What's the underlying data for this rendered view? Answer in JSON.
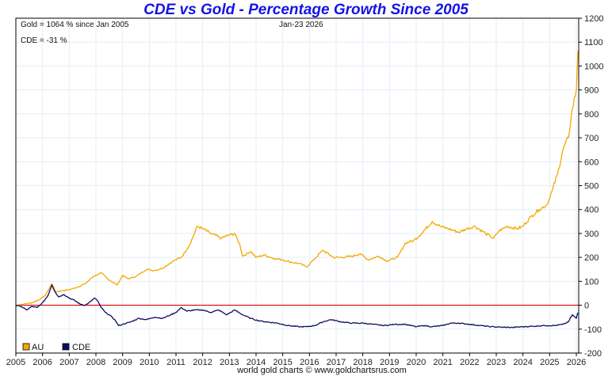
{
  "chart_data": {
    "type": "line",
    "title": "CDE vs Gold - Percentage Growth Since 2005",
    "xlabel": "",
    "ylabel": "",
    "xlim": [
      2005,
      2026.1
    ],
    "ylim": [
      -200,
      1200
    ],
    "yticks": [
      -200,
      -100,
      0,
      100,
      200,
      300,
      400,
      500,
      600,
      700,
      800,
      900,
      1000,
      1100,
      1200
    ],
    "xticks": [
      "2005",
      "2006",
      "2007",
      "2008",
      "2009",
      "2010",
      "2011",
      "2012",
      "2013",
      "2014",
      "2015",
      "2016",
      "2017",
      "2018",
      "2019",
      "2020",
      "2021",
      "2022",
      "2023",
      "2024",
      "2025",
      "2026"
    ],
    "grid": true,
    "zero_line_color": "#dd0000",
    "annotations": {
      "gold_summary": "Gold = 1064 % since Jan 2005",
      "date": "Jan-23  2026",
      "cde_summary": "CDE = -31 %"
    },
    "legend": {
      "placement": "bottom-left",
      "entries": [
        "AU",
        "CDE"
      ]
    },
    "series": [
      {
        "name": "AU",
        "color": "#f5a800",
        "x": [
          2005.0,
          2005.3,
          2005.6,
          2005.9,
          2006.1,
          2006.35,
          2006.5,
          2006.7,
          2007.0,
          2007.3,
          2007.6,
          2007.9,
          2008.1,
          2008.2,
          2008.5,
          2008.8,
          2009.0,
          2009.2,
          2009.5,
          2009.9,
          2010.2,
          2010.5,
          2010.9,
          2011.2,
          2011.5,
          2011.65,
          2011.8,
          2012.0,
          2012.3,
          2012.7,
          2012.9,
          2013.2,
          2013.4,
          2013.5,
          2013.8,
          2014.0,
          2014.3,
          2014.7,
          2015.0,
          2015.3,
          2015.6,
          2015.9,
          2016.2,
          2016.5,
          2016.9,
          2017.2,
          2017.6,
          2017.9,
          2018.2,
          2018.6,
          2018.9,
          2019.3,
          2019.6,
          2019.9,
          2020.2,
          2020.6,
          2020.9,
          2021.2,
          2021.6,
          2021.9,
          2022.2,
          2022.6,
          2022.9,
          2023.1,
          2023.4,
          2023.8,
          2024.0,
          2024.3,
          2024.6,
          2024.9,
          2025.1,
          2025.3,
          2025.5,
          2025.7,
          2025.85,
          2026.0,
          2026.06
        ],
        "values": [
          0,
          5,
          10,
          25,
          40,
          90,
          55,
          60,
          65,
          75,
          90,
          120,
          130,
          135,
          105,
          85,
          125,
          110,
          120,
          150,
          145,
          155,
          185,
          200,
          250,
          290,
          330,
          320,
          300,
          280,
          290,
          300,
          250,
          205,
          225,
          200,
          210,
          195,
          190,
          180,
          175,
          160,
          195,
          230,
          200,
          200,
          205,
          215,
          190,
          205,
          185,
          200,
          260,
          270,
          300,
          350,
          330,
          320,
          305,
          320,
          330,
          300,
          280,
          310,
          330,
          320,
          330,
          370,
          400,
          420,
          480,
          550,
          650,
          700,
          820,
          900,
          1064
        ]
      },
      {
        "name": "CDE",
        "color": "#0d0d60",
        "x": [
          2005.0,
          2005.2,
          2005.4,
          2005.6,
          2005.8,
          2006.0,
          2006.2,
          2006.35,
          2006.45,
          2006.6,
          2006.8,
          2007.0,
          2007.2,
          2007.4,
          2007.6,
          2007.8,
          2007.95,
          2008.05,
          2008.2,
          2008.35,
          2008.5,
          2008.7,
          2008.85,
          2009.0,
          2009.3,
          2009.6,
          2009.9,
          2010.2,
          2010.5,
          2010.8,
          2011.0,
          2011.2,
          2011.4,
          2011.7,
          2012.0,
          2012.3,
          2012.6,
          2012.9,
          2013.2,
          2013.5,
          2013.8,
          2014.1,
          2014.4,
          2014.8,
          2015.2,
          2015.6,
          2015.9,
          2016.2,
          2016.5,
          2016.8,
          2017.2,
          2017.6,
          2018.0,
          2018.4,
          2018.8,
          2019.2,
          2019.6,
          2020.0,
          2020.3,
          2020.6,
          2021.0,
          2021.3,
          2021.6,
          2022.0,
          2022.4,
          2022.8,
          2023.2,
          2023.6,
          2024.0,
          2024.4,
          2024.8,
          2025.2,
          2025.5,
          2025.7,
          2025.85,
          2026.0,
          2026.06
        ],
        "values": [
          0,
          -5,
          -20,
          -5,
          -10,
          10,
          40,
          85,
          60,
          35,
          45,
          30,
          20,
          5,
          0,
          15,
          30,
          20,
          -10,
          -30,
          -40,
          -60,
          -85,
          -80,
          -70,
          -55,
          -60,
          -50,
          -55,
          -40,
          -30,
          -10,
          -25,
          -20,
          -20,
          -30,
          -20,
          -40,
          -20,
          -40,
          -55,
          -65,
          -70,
          -75,
          -85,
          -90,
          -90,
          -85,
          -70,
          -60,
          -70,
          -75,
          -75,
          -80,
          -85,
          -80,
          -80,
          -90,
          -85,
          -90,
          -85,
          -75,
          -75,
          -80,
          -85,
          -90,
          -92,
          -93,
          -90,
          -88,
          -85,
          -85,
          -80,
          -70,
          -40,
          -55,
          -31
        ]
      }
    ]
  },
  "footer": "world gold charts © www.goldchartsrus.com"
}
